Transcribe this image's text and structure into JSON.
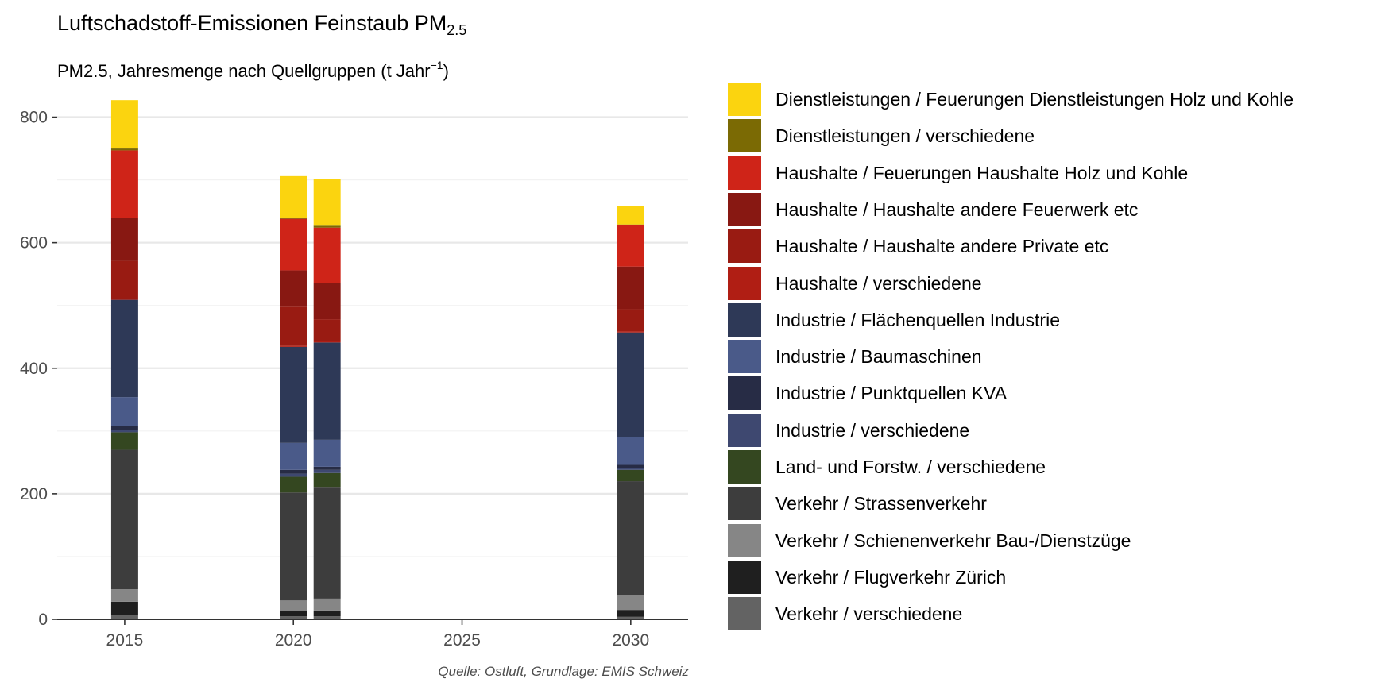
{
  "title": {
    "main": "Luftschadstoff-Emissionen Feinstaub PM",
    "sub": "2.5"
  },
  "subtitle": {
    "main": "PM2.5, Jahresmenge nach Quellgruppen (t Jahr",
    "sup": "−1",
    "end": ")"
  },
  "caption": "Quelle: Ostluft, Grundlage: EMIS Schweiz",
  "chart_data": {
    "type": "bar",
    "stacked": true,
    "x": [
      2015,
      2020,
      2021,
      2030
    ],
    "xlim": [
      2013,
      2031.7
    ],
    "ylim": [
      0,
      850
    ],
    "x_ticks": [
      2015,
      2020,
      2025,
      2030
    ],
    "x_tick_labels": [
      "2015",
      "2020",
      "2025",
      "2030"
    ],
    "y_ticks": [
      0,
      200,
      400,
      600,
      800
    ],
    "y_tick_labels": [
      "0",
      "200",
      "400",
      "600",
      "800"
    ],
    "grid": true,
    "legend_position": "right",
    "series": [
      {
        "name": "Verkehr / verschiedene",
        "color": "#636363",
        "values": [
          6,
          5,
          5,
          4
        ]
      },
      {
        "name": "Verkehr / Flugverkehr Zürich",
        "color": "#1f1f1f",
        "values": [
          22,
          8,
          9,
          11
        ]
      },
      {
        "name": "Verkehr / Schienenverkehr Bau-/Dienstzüge",
        "color": "#868686",
        "values": [
          20,
          17,
          19,
          23
        ]
      },
      {
        "name": "Verkehr / Strassenverkehr",
        "color": "#3d3d3d",
        "values": [
          222,
          172,
          178,
          182
        ]
      },
      {
        "name": "Land- und Forstw. / verschiedene",
        "color": "#344720",
        "values": [
          28,
          25,
          22,
          18
        ]
      },
      {
        "name": "Industrie / verschiedene",
        "color": "#3e4870",
        "values": [
          4,
          5,
          5,
          3
        ]
      },
      {
        "name": "Industrie / Punktquellen KVA",
        "color": "#272c45",
        "values": [
          6,
          6,
          5,
          5
        ]
      },
      {
        "name": "Industrie / Baumaschinen",
        "color": "#4a5a89",
        "values": [
          46,
          43,
          43,
          44
        ]
      },
      {
        "name": "Industrie / Flächenquellen Industrie",
        "color": "#2e3957",
        "values": [
          155,
          153,
          155,
          167
        ]
      },
      {
        "name": "Haushalte / verschiedene",
        "color": "#b01e14",
        "values": [
          2,
          2,
          2,
          2
        ]
      },
      {
        "name": "Haushalte / Haushalte andere Private etc",
        "color": "#991b12",
        "values": [
          60,
          62,
          35,
          35
        ]
      },
      {
        "name": "Haushalte / Haushalte andere Feuerwerk etc",
        "color": "#881812",
        "values": [
          68,
          58,
          58,
          68
        ]
      },
      {
        "name": "Haushalte / Feuerungen Haushalte Holz und Kohle",
        "color": "#cf2418",
        "values": [
          108,
          82,
          88,
          66
        ]
      },
      {
        "name": "Dienstleistungen / verschiedene",
        "color": "#7b6a04",
        "values": [
          3,
          2,
          3,
          1
        ]
      },
      {
        "name": "Dienstleistungen / Feuerungen Dienstleistungen Holz und Kohle",
        "color": "#fbd40f",
        "values": [
          77,
          66,
          74,
          30
        ]
      }
    ]
  }
}
